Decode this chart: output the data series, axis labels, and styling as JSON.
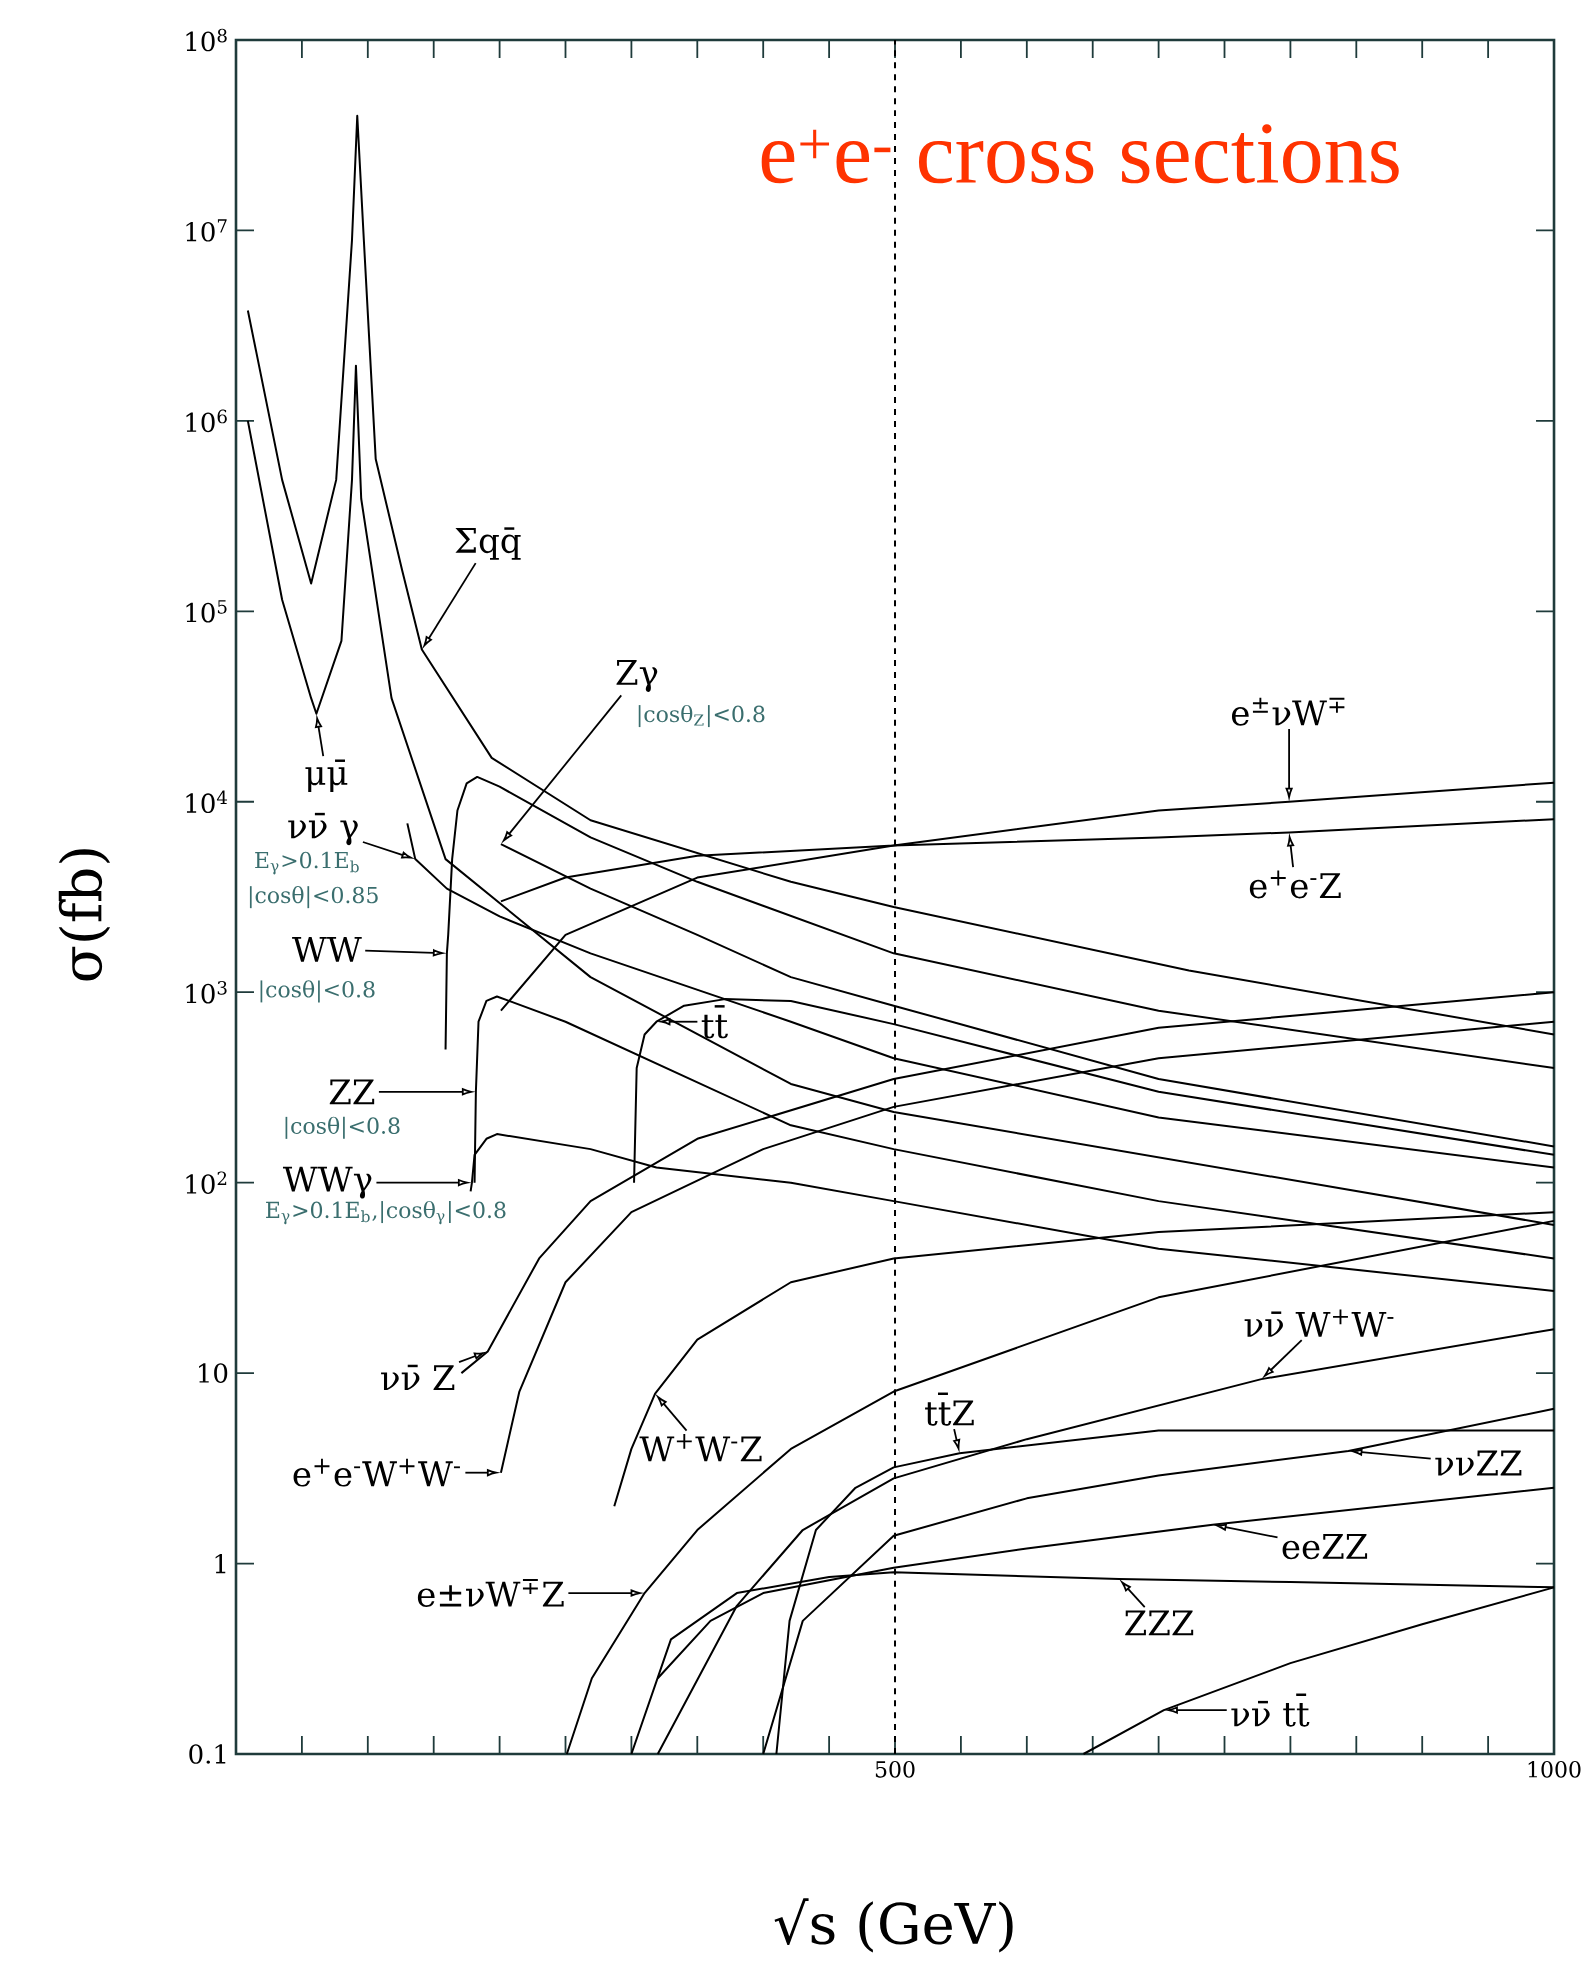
{
  "chart_data": {
    "type": "line",
    "title": "e$^{+}$e$^{-}$ cross sections",
    "xlabel": "√s (GeV)",
    "ylabel": "σ(fb)",
    "log": "y",
    "xlim": [
      0,
      1000
    ],
    "ylim": [
      0.1,
      100000000
    ],
    "xticks": [
      {
        "value": 50,
        "label": null
      },
      {
        "value": 100,
        "label": null
      },
      {
        "value": 150,
        "label": null
      },
      {
        "value": 200,
        "label": null
      },
      {
        "value": 250,
        "label": null
      },
      {
        "value": 300,
        "label": null
      },
      {
        "value": 350,
        "label": null
      },
      {
        "value": 400,
        "label": null
      },
      {
        "value": 450,
        "label": null
      },
      500,
      {
        "value": 550,
        "label": null
      },
      {
        "value": 600,
        "label": null
      },
      {
        "value": 650,
        "label": null
      },
      {
        "value": 700,
        "label": null
      },
      {
        "value": 750,
        "label": null
      },
      {
        "value": 800,
        "label": null
      },
      {
        "value": 850,
        "label": null
      },
      {
        "value": 900,
        "label": null
      },
      {
        "value": 950,
        "label": null
      },
      1000
    ],
    "yticks": [
      0.1,
      1,
      10,
      {
        "value": 100,
        "label": "10$^{2}$"
      },
      {
        "value": 1000,
        "label": "10$^{3}$"
      },
      {
        "value": 10000,
        "label": "10$^{4}$"
      },
      {
        "value": 100000,
        "label": "10$^{5}$"
      },
      {
        "value": 1000000,
        "label": "10$^{6}$"
      },
      {
        "value": 10000000,
        "label": "10$^{7}$"
      },
      {
        "value": 100000000,
        "label": "10$^{8}$"
      }
    ],
    "ref_lines": [
      {
        "axis": "x",
        "value": 500,
        "line_style": "dashed"
      }
    ],
    "series": [
      {
        "color": "#000000",
        "x": [
          9,
          35,
          57,
          76,
          88,
          92,
          97,
          106,
          126,
          141,
          194,
          269,
          421,
          499,
          723,
          1000
        ],
        "values": [
          3800000,
          490000,
          140000,
          490000,
          8900000,
          40000000,
          8900000,
          630000,
          165000,
          63000,
          17000,
          8000,
          3800,
          2800,
          1300,
          600
        ]
      },
      {
        "color": "#000000",
        "x": [
          9,
          35,
          57,
          61,
          80,
          88,
          91,
          95,
          118,
          159,
          269,
          421,
          499,
          1000
        ],
        "values": [
          1000000,
          115000,
          35000,
          29000,
          70000,
          490000,
          1950000,
          390000,
          35000,
          5000,
          1200,
          330,
          235,
          60
        ]
      },
      {
        "color": "#000000",
        "x": [
          130,
          136,
          160,
          200,
          269,
          421,
          499,
          700,
          1000
        ],
        "values": [
          7700,
          5000,
          3500,
          2500,
          1600,
          700,
          450,
          220,
          120
        ]
      },
      {
        "color": "#000000",
        "x": [
          159,
          160,
          161,
          164,
          168,
          175,
          183,
          200,
          269,
          350,
          499,
          700,
          1000
        ],
        "values": [
          500,
          1600,
          2000,
          5000,
          9000,
          12500,
          13500,
          12000,
          6500,
          3800,
          1600,
          800,
          400
        ]
      },
      {
        "color": "#000000",
        "x": [
          201,
          269,
          350,
          421,
          499,
          700,
          1000
        ],
        "values": [
          6000,
          3500,
          2000,
          1200,
          850,
          350,
          155
        ]
      },
      {
        "color": "#000000",
        "x": [
          181,
          182,
          184,
          190,
          198,
          250,
          421,
          499,
          700,
          1000
        ],
        "values": [
          100,
          300,
          700,
          900,
          950,
          700,
          200,
          150,
          80,
          40
        ]
      },
      {
        "color": "#000000",
        "x": [
          178,
          179,
          181,
          190,
          198,
          269,
          319,
          421,
          499,
          700,
          1000
        ],
        "values": [
          90,
          100,
          140,
          170,
          180,
          150,
          120,
          100,
          80,
          45,
          27
        ]
      },
      {
        "color": "#000000",
        "x": [
          302,
          304,
          310,
          319,
          340,
          371,
          421,
          499,
          700,
          1000
        ],
        "values": [
          100,
          400,
          600,
          700,
          850,
          920,
          900,
          680,
          300,
          140
        ]
      },
      {
        "color": "#000000",
        "x": [
          201,
          250,
          350,
          499,
          700,
          799,
          1000
        ],
        "values": [
          3000,
          4000,
          5200,
          5900,
          9000,
          10000,
          12600
        ]
      },
      {
        "color": "#000000",
        "x": [
          201,
          250,
          350,
          499,
          700,
          799,
          1000
        ],
        "values": [
          800,
          2000,
          4000,
          5900,
          6500,
          6900,
          8100
        ]
      },
      {
        "color": "#000000",
        "x": [
          171,
          191,
          230,
          269,
          350,
          499,
          700,
          1000
        ],
        "values": [
          10,
          13,
          40,
          80,
          170,
          350,
          650,
          1000
        ]
      },
      {
        "color": "#000000",
        "x": [
          201,
          215,
          250,
          300,
          400,
          499,
          700,
          1000
        ],
        "values": [
          3,
          8,
          30,
          70,
          150,
          250,
          450,
          700
        ]
      },
      {
        "color": "#000000",
        "x": [
          287,
          300,
          318,
          350,
          421,
          499,
          700,
          1000
        ],
        "values": [
          2,
          4,
          7.8,
          15,
          30,
          40,
          55,
          70
        ]
      },
      {
        "color": "#000000",
        "x": [
          251,
          270,
          310,
          350,
          421,
          499,
          700,
          1000
        ],
        "values": [
          0.1,
          0.25,
          0.7,
          1.5,
          4,
          8,
          25,
          63
        ]
      },
      {
        "color": "#000000",
        "x": [
          410,
          420,
          440,
          470,
          499,
          549,
          700,
          1000
        ],
        "values": [
          0.1,
          0.5,
          1.5,
          2.5,
          3.2,
          3.8,
          5,
          5
        ]
      },
      {
        "color": "#000000",
        "x": [
          320,
          380,
          430,
          499,
          600,
          778,
          1000
        ],
        "values": [
          0.1,
          0.6,
          1.5,
          2.8,
          4.5,
          9.3,
          17
        ]
      },
      {
        "color": "#000000",
        "x": [
          400,
          430,
          499,
          600,
          700,
          844,
          1000
        ],
        "values": [
          0.1,
          0.5,
          1.4,
          2.2,
          2.9,
          3.9,
          6.5
        ]
      },
      {
        "color": "#000000",
        "x": [
          320,
          360,
          400,
          499,
          600,
          741,
          1000
        ],
        "values": [
          0.25,
          0.5,
          0.7,
          0.95,
          1.2,
          1.6,
          2.5
        ]
      },
      {
        "color": "#000000",
        "x": [
          300,
          330,
          380,
          450,
          499,
          670,
          800,
          1000
        ],
        "values": [
          0.1,
          0.4,
          0.7,
          0.85,
          0.9,
          0.83,
          0.8,
          0.75
        ]
      },
      {
        "color": "#000000",
        "x": [
          643,
          704,
          800,
          900,
          1000
        ],
        "values": [
          0.1,
          0.17,
          0.3,
          0.48,
          0.75
        ]
      }
    ],
    "annotations": [
      {
        "text": "Σqq̄",
        "x": 141,
        "y": 63000
      },
      {
        "text": "Zγ",
        "x": 201,
        "y": 6000
      },
      "|cosθ$_{Z}$|<0.8",
      {
        "text": "μμ̄",
        "x": 61,
        "y": 29000
      },
      {
        "text": "νν̄ γ",
        "x": 136,
        "y": 5000
      },
      "E$_{γ}$>0.1E$_{b}$",
      "|cosθ|<0.85",
      {
        "text": "WW",
        "x": 160,
        "y": 1600
      },
      "|cosθ|<0.8",
      {
        "text": "ZZ",
        "x": 182,
        "y": 300
      },
      "|cosθ|<0.8",
      {
        "text": "WWγ",
        "x": 179,
        "y": 100
      },
      "E$_{γ}$>0.1E$_{b}$,|cosθ$_{γ}$|<0.8",
      {
        "text": "tt̄",
        "x": 319,
        "y": 700
      },
      {
        "text": "e$^{±}$νW$^{∓}$",
        "x": 799,
        "y": 10000
      },
      {
        "text": "e$^{+}$e$^{-}$Z",
        "x": 799,
        "y": 6900
      },
      {
        "text": "νν̄ Z",
        "x": 191,
        "y": 13
      },
      {
        "text": "e$^{+}$e$^{-}$W$^{+}$W$^{-}$",
        "x": 201,
        "y": 3
      },
      {
        "text": "W$^{+}$W$^{-}$Z",
        "x": 318,
        "y": 7.8
      },
      {
        "text": "e±νW$^{∓}$Z",
        "x": 310,
        "y": 0.7
      },
      {
        "text": "tt̄Z",
        "x": 549,
        "y": 3.8
      },
      {
        "text": "νν̄ W$^{+}$W$^{-}$",
        "x": 778,
        "y": 9.3
      },
      {
        "text": "ννZZ",
        "x": 844,
        "y": 3.9
      },
      {
        "text": "eeZZ",
        "x": 741,
        "y": 1.6
      },
      {
        "text": "ZZZ",
        "x": 670,
        "y": 0.83
      },
      {
        "text": "νν̄ tt̄",
        "x": 704,
        "y": 0.17
      }
    ]
  }
}
